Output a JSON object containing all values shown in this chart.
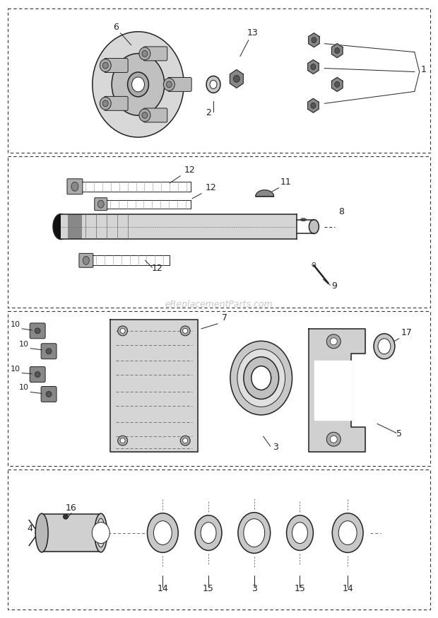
{
  "bg_color": "#ffffff",
  "fig_width": 6.2,
  "fig_height": 8.74,
  "watermark": "eReplacementParts.com"
}
